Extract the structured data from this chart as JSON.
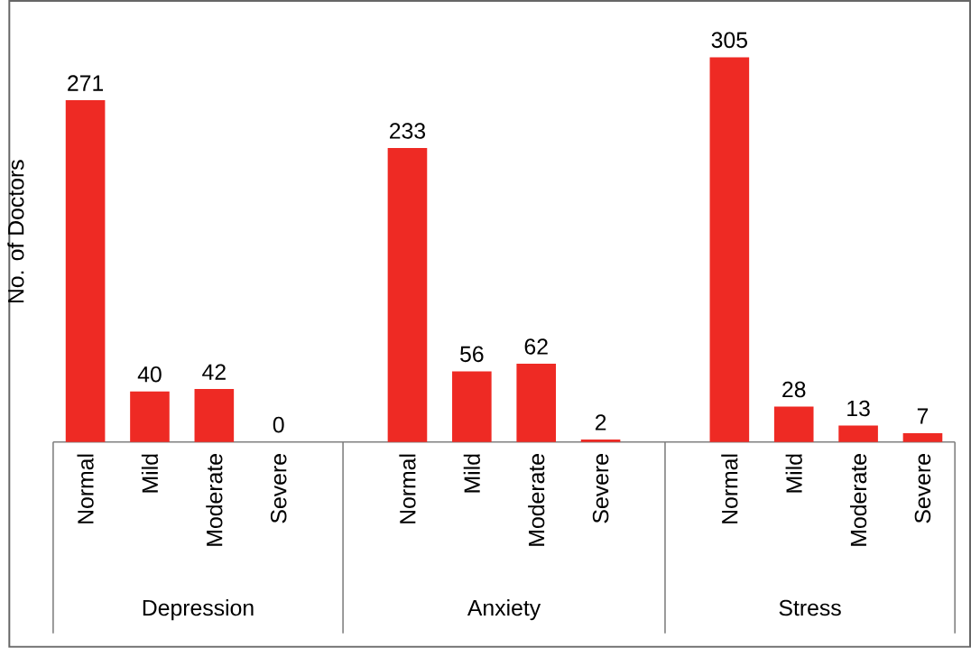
{
  "chart_data": {
    "type": "bar",
    "ylabel": "No. of Doctors",
    "categories": [
      "Normal",
      "Mild",
      "Moderate",
      "Severe",
      null,
      "Normal",
      "Mild",
      "Moderate",
      "Severe",
      null,
      "Normal",
      "Mild",
      "Moderate",
      "Severe"
    ],
    "series": [
      {
        "color": "#ee2a24",
        "values": [
          271,
          40,
          42,
          0,
          null,
          233,
          56,
          62,
          2,
          null,
          305,
          28,
          13,
          7
        ]
      }
    ],
    "annotations": [
      "Depression",
      "Anxiety",
      "Stress"
    ],
    "data_labels": true
  }
}
